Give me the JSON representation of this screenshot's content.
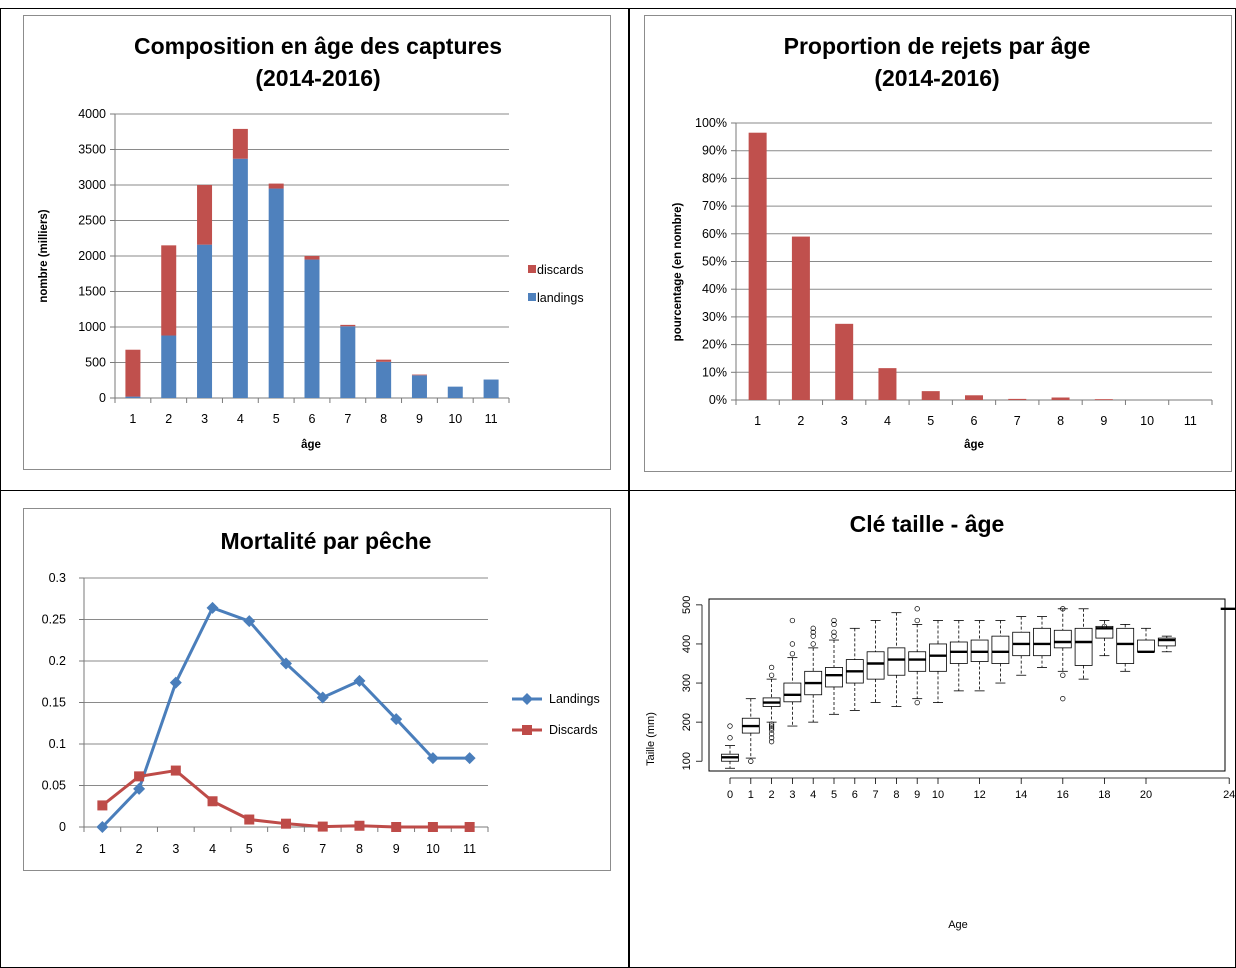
{
  "chart_data": [
    {
      "type": "bar",
      "title": "Composition en âge des captures",
      "subtitle": "(2014-2016)",
      "xlabel": "âge",
      "ylabel": "nombre (milliers)",
      "categories": [
        "1",
        "2",
        "3",
        "4",
        "5",
        "6",
        "7",
        "8",
        "9",
        "10",
        "11"
      ],
      "ylim": [
        0,
        4000
      ],
      "yticks": [
        "0",
        "500",
        "1000",
        "1500",
        "2000",
        "2500",
        "3000",
        "3500",
        "4000"
      ],
      "stacked": true,
      "legend_position": "right",
      "series": [
        {
          "name": "discards",
          "color": "#c0504d",
          "values": [
            660,
            1270,
            840,
            420,
            70,
            50,
            20,
            30,
            10,
            0,
            0
          ]
        },
        {
          "name": "landings",
          "color": "#4f81bd",
          "values": [
            20,
            880,
            2160,
            3370,
            2950,
            1950,
            1010,
            510,
            320,
            160,
            260
          ]
        }
      ],
      "legend_order": [
        "discards",
        "landings"
      ]
    },
    {
      "type": "bar",
      "title": "Proportion de rejets par âge",
      "subtitle": "(2014-2016)",
      "xlabel": "âge",
      "ylabel": "pourcentage (en nombre)",
      "categories": [
        "1",
        "2",
        "3",
        "4",
        "5",
        "6",
        "7",
        "8",
        "9",
        "10",
        "11"
      ],
      "ylim": [
        0,
        100
      ],
      "yticks": [
        "0%",
        "10%",
        "20%",
        "30%",
        "40%",
        "50%",
        "60%",
        "70%",
        "80%",
        "90%",
        "100%"
      ],
      "series": [
        {
          "color": "#c0504d",
          "values": [
            96.5,
            59,
            27.5,
            11.5,
            3.2,
            1.7,
            0.4,
            0.9,
            0.3,
            0,
            0
          ]
        }
      ]
    },
    {
      "type": "line",
      "title": "Mortalité par pêche",
      "categories": [
        "1",
        "2",
        "3",
        "4",
        "5",
        "6",
        "7",
        "8",
        "9",
        "10",
        "11"
      ],
      "ylim": [
        0,
        0.3
      ],
      "yticks": [
        "0",
        "0.05",
        "0.1",
        "0.15",
        "0.2",
        "0.25",
        "0.3"
      ],
      "legend_position": "right",
      "series": [
        {
          "name": "Landings",
          "color": "#4a7ebb",
          "values": [
            0,
            0.046,
            0.174,
            0.264,
            0.248,
            0.197,
            0.156,
            0.176,
            0.13,
            0.083,
            0.083
          ]
        },
        {
          "name": "Discards",
          "color": "#be4b48",
          "values": [
            0.026,
            0.061,
            0.068,
            0.031,
            0.009,
            0.004,
            0.0005,
            0.0015,
            0,
            0,
            0
          ]
        }
      ]
    },
    {
      "type": "boxplot",
      "title": "Clé taille - âge",
      "xlabel": "Age",
      "ylabel": "Taille (mm)",
      "ylim": [
        75,
        515
      ],
      "yticks": [
        "100",
        "200",
        "300",
        "400",
        "500"
      ],
      "xtick_labels": [
        "0",
        "1",
        "2",
        "3",
        "4",
        "5",
        "6",
        "7",
        "8",
        "9",
        "10",
        "12",
        "14",
        "16",
        "18",
        "20",
        "24"
      ],
      "boxes": [
        {
          "age": 0,
          "q1": 100,
          "median": 110,
          "q3": 118,
          "whisker_low": 82,
          "whisker_high": 140,
          "outliers": [
            160,
            190
          ]
        },
        {
          "age": 1,
          "q1": 172,
          "median": 190,
          "q3": 210,
          "whisker_low": 108,
          "whisker_high": 260,
          "outliers": [
            100
          ]
        },
        {
          "age": 2,
          "q1": 240,
          "median": 250,
          "q3": 262,
          "whisker_low": 200,
          "whisker_high": 310,
          "outliers": [
            150,
            160,
            170,
            180,
            185,
            190,
            195,
            320,
            340
          ]
        },
        {
          "age": 3,
          "q1": 252,
          "median": 270,
          "q3": 300,
          "whisker_low": 190,
          "whisker_high": 365,
          "outliers": [
            375,
            400,
            460
          ]
        },
        {
          "age": 4,
          "q1": 270,
          "median": 300,
          "q3": 330,
          "whisker_low": 200,
          "whisker_high": 390,
          "outliers": [
            400,
            420,
            430,
            440
          ]
        },
        {
          "age": 5,
          "q1": 290,
          "median": 320,
          "q3": 340,
          "whisker_low": 220,
          "whisker_high": 410,
          "outliers": [
            420,
            430,
            450,
            460
          ]
        },
        {
          "age": 6,
          "q1": 300,
          "median": 330,
          "q3": 360,
          "whisker_low": 230,
          "whisker_high": 440,
          "outliers": []
        },
        {
          "age": 7,
          "q1": 310,
          "median": 350,
          "q3": 380,
          "whisker_low": 250,
          "whisker_high": 460,
          "outliers": []
        },
        {
          "age": 8,
          "q1": 320,
          "median": 360,
          "q3": 390,
          "whisker_low": 240,
          "whisker_high": 480,
          "outliers": []
        },
        {
          "age": 9,
          "q1": 330,
          "median": 360,
          "q3": 380,
          "whisker_low": 260,
          "whisker_high": 450,
          "outliers": [
            250,
            460,
            490
          ]
        },
        {
          "age": 10,
          "q1": 330,
          "median": 370,
          "q3": 400,
          "whisker_low": 250,
          "whisker_high": 460,
          "outliers": []
        },
        {
          "age": 11,
          "q1": 350,
          "median": 380,
          "q3": 405,
          "whisker_low": 280,
          "whisker_high": 460,
          "outliers": []
        },
        {
          "age": 12,
          "q1": 355,
          "median": 380,
          "q3": 410,
          "whisker_low": 280,
          "whisker_high": 460,
          "outliers": []
        },
        {
          "age": 13,
          "q1": 350,
          "median": 380,
          "q3": 420,
          "whisker_low": 300,
          "whisker_high": 460,
          "outliers": []
        },
        {
          "age": 14,
          "q1": 370,
          "median": 400,
          "q3": 430,
          "whisker_low": 320,
          "whisker_high": 470,
          "outliers": []
        },
        {
          "age": 15,
          "q1": 370,
          "median": 400,
          "q3": 440,
          "whisker_low": 340,
          "whisker_high": 470,
          "outliers": []
        },
        {
          "age": 16,
          "q1": 390,
          "median": 405,
          "q3": 435,
          "whisker_low": 330,
          "whisker_high": 490,
          "outliers": [
            260,
            320,
            490
          ]
        },
        {
          "age": 17,
          "q1": 345,
          "median": 405,
          "q3": 440,
          "whisker_low": 310,
          "whisker_high": 490,
          "outliers": []
        },
        {
          "age": 18,
          "q1": 415,
          "median": 440,
          "q3": 445,
          "whisker_low": 370,
          "whisker_high": 460,
          "outliers": [
            445
          ]
        },
        {
          "age": 19,
          "q1": 350,
          "median": 400,
          "q3": 440,
          "whisker_low": 330,
          "whisker_high": 450,
          "outliers": []
        },
        {
          "age": 20,
          "q1": 380,
          "median": 380,
          "q3": 410,
          "whisker_low": 380,
          "whisker_high": 440,
          "outliers": []
        },
        {
          "age": 21,
          "q1": 395,
          "median": 410,
          "q3": 415,
          "whisker_low": 380,
          "whisker_high": 420,
          "outliers": []
        },
        {
          "age": 24,
          "q1": 490,
          "median": 490,
          "q3": 490,
          "whisker_low": 490,
          "whisker_high": 490,
          "outliers": []
        }
      ]
    }
  ]
}
